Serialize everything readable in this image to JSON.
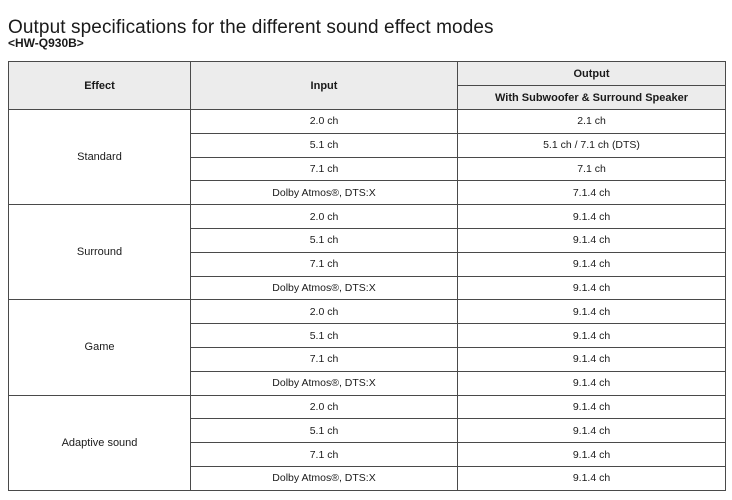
{
  "title": "Output specifications for the different sound effect modes",
  "model": "<HW-Q930B>",
  "table": {
    "headers": {
      "effect": "Effect",
      "input": "Input",
      "output": "Output",
      "output_sub": "With Subwoofer & Surround Speaker"
    },
    "groups": [
      {
        "effect": "Standard",
        "rows": [
          {
            "input": "2.0 ch",
            "output": "2.1 ch"
          },
          {
            "input": "5.1 ch",
            "output": "5.1 ch / 7.1 ch (DTS)"
          },
          {
            "input": "7.1 ch",
            "output": "7.1 ch"
          },
          {
            "input": "Dolby Atmos®, DTS:X",
            "output": "7.1.4 ch"
          }
        ]
      },
      {
        "effect": "Surround",
        "rows": [
          {
            "input": "2.0 ch",
            "output": "9.1.4 ch"
          },
          {
            "input": "5.1 ch",
            "output": "9.1.4 ch"
          },
          {
            "input": "7.1 ch",
            "output": "9.1.4 ch"
          },
          {
            "input": "Dolby Atmos®, DTS:X",
            "output": "9.1.4 ch"
          }
        ]
      },
      {
        "effect": "Game",
        "rows": [
          {
            "input": "2.0 ch",
            "output": "9.1.4 ch"
          },
          {
            "input": "5.1 ch",
            "output": "9.1.4 ch"
          },
          {
            "input": "7.1 ch",
            "output": "9.1.4 ch"
          },
          {
            "input": "Dolby Atmos®, DTS:X",
            "output": "9.1.4 ch"
          }
        ]
      },
      {
        "effect": "Adaptive sound",
        "rows": [
          {
            "input": "2.0 ch",
            "output": "9.1.4 ch"
          },
          {
            "input": "5.1 ch",
            "output": "9.1.4 ch"
          },
          {
            "input": "7.1 ch",
            "output": "9.1.4 ch"
          },
          {
            "input": "Dolby Atmos®, DTS:X",
            "output": "9.1.4 ch"
          }
        ]
      }
    ]
  }
}
